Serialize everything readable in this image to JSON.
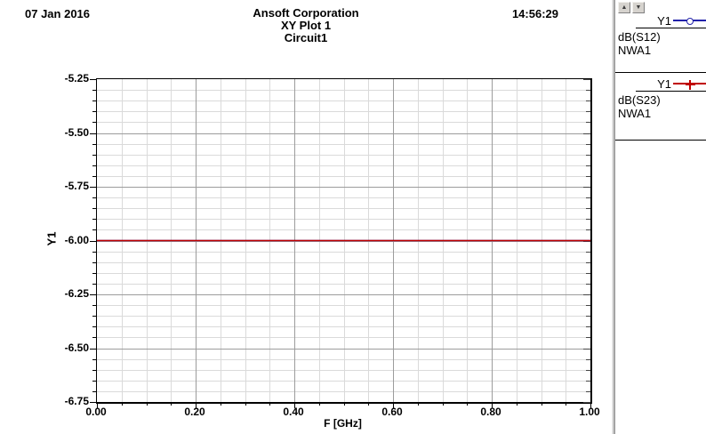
{
  "header": {
    "date": "07 Jan 2016",
    "company": "Ansoft Corporation",
    "plot_title": "XY Plot 1",
    "circuit": "Circuit1",
    "time": "14:56:29"
  },
  "chart_data": {
    "type": "line",
    "title": "XY Plot 1",
    "subtitle": "Circuit1",
    "xlabel": "F [GHz]",
    "ylabel": "Y1",
    "xlim": [
      0.0,
      1.0
    ],
    "ylim": [
      -6.75,
      -5.25
    ],
    "xticks": [
      0.0,
      0.2,
      0.4,
      0.6,
      0.8,
      1.0
    ],
    "xtick_labels": [
      "0.00",
      "0.20",
      "0.40",
      "0.60",
      "0.80",
      "1.00"
    ],
    "yticks": [
      -5.25,
      -5.5,
      -5.75,
      -6.0,
      -6.25,
      -6.5,
      -6.75
    ],
    "ytick_labels": [
      "-5.25",
      "-5.50",
      "-5.75",
      "-6.00",
      "-6.25",
      "-6.50",
      "-6.75"
    ],
    "x_minor_step": 0.05,
    "y_minor_step": 0.05,
    "grid": true,
    "grid_minor_color": "#dadada",
    "grid_major_color": "#9c9c9c",
    "series": [
      {
        "name": "dB(S12)",
        "solution": "NWA1",
        "color": "#2222aa",
        "marker": "circle",
        "x": [
          0.0,
          1.0
        ],
        "y": [
          -6.0,
          -6.0
        ]
      },
      {
        "name": "dB(S23)",
        "solution": "NWA1",
        "color": "#c00000",
        "marker": "plus",
        "x": [
          0.0,
          1.0
        ],
        "y": [
          -6.0,
          -6.0
        ]
      }
    ]
  },
  "legend": {
    "scroll_up_icon": "▲",
    "scroll_down_icon": "▼",
    "entries": [
      {
        "label": "Y1",
        "expression": "dB(S12)",
        "solution": "NWA1",
        "color": "#2222aa",
        "marker": "circle"
      },
      {
        "label": "Y1",
        "expression": "dB(S23)",
        "solution": "NWA1",
        "color": "#c00000",
        "marker": "plus"
      }
    ]
  }
}
